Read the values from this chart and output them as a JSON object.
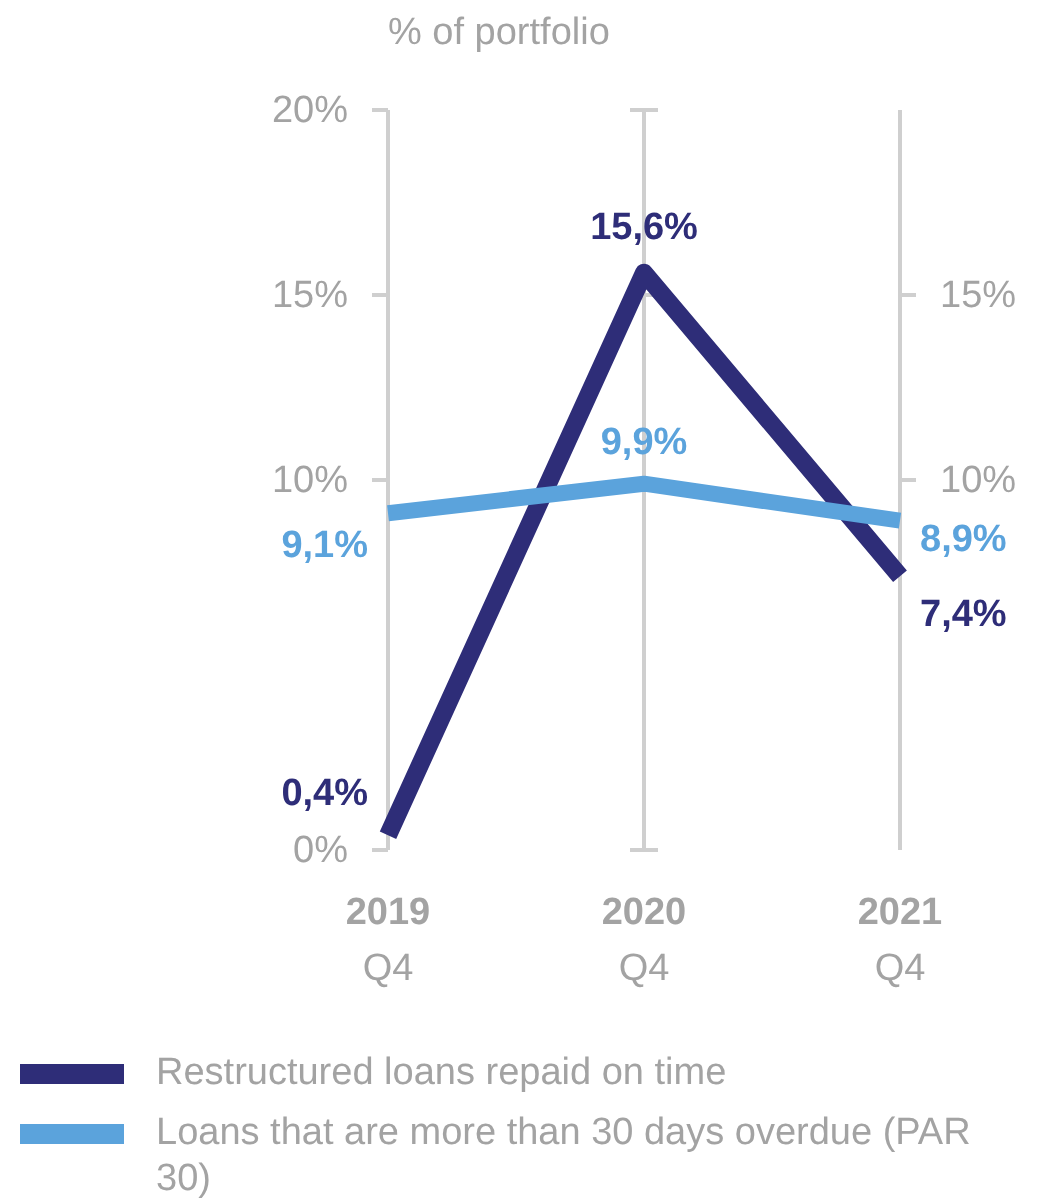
{
  "chart_data": {
    "type": "line",
    "ylabel": "% of portfolio",
    "categories": [
      "2019\nQ4",
      "2020\nQ4",
      "2021\nQ4"
    ],
    "series": [
      {
        "name": "Restructured loans repaid on time",
        "color": "#2e2d78",
        "values": [
          0.4,
          15.6,
          7.4
        ],
        "value_labels": [
          "0,4%",
          "15,6%",
          "7,4%"
        ]
      },
      {
        "name": "Loans that are more than 30 days overdue (PAR 30)",
        "color": "#5ba3dc",
        "values": [
          9.1,
          9.9,
          8.9
        ],
        "value_labels": [
          "9,1%",
          "9,9%",
          "8,9%"
        ]
      }
    ],
    "ylim": [
      0,
      20
    ],
    "yticks": [
      {
        "value": 0,
        "label": "0%"
      },
      {
        "value": 10,
        "label": "10%"
      },
      {
        "value": 15,
        "label": "15%"
      },
      {
        "value": 20,
        "label": "20%"
      }
    ],
    "y2lim": [
      0,
      20
    ],
    "y2ticks": [
      {
        "value": 10,
        "label": "10%"
      },
      {
        "value": 15,
        "label": "15%"
      }
    ],
    "grid": "x",
    "legend": "bottom",
    "marker": "none",
    "line_style": "solid"
  }
}
